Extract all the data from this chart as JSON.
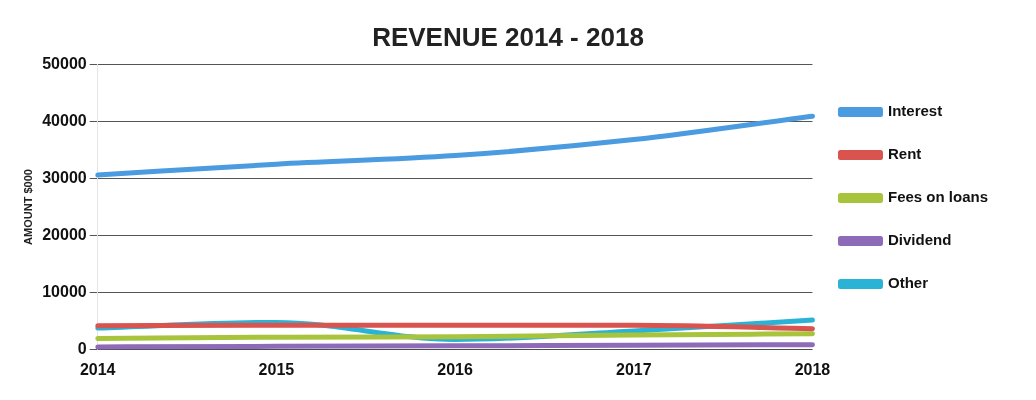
{
  "chart_data": {
    "type": "line",
    "title": "REVENUE 2014 - 2018",
    "ylabel": "AMOUNT $000",
    "categories": [
      "2014",
      "2015",
      "2016",
      "2017",
      "2018"
    ],
    "series": [
      {
        "name": "Interest",
        "color": "#4a9be0",
        "values": [
          30600,
          32500,
          34000,
          36800,
          40900
        ]
      },
      {
        "name": "Rent",
        "color": "#d9534f",
        "values": [
          4200,
          4300,
          4300,
          4300,
          3700
        ]
      },
      {
        "name": "Fees on loans",
        "color": "#a8c43c",
        "values": [
          2000,
          2200,
          2300,
          2600,
          2800
        ]
      },
      {
        "name": "Dividend",
        "color": "#8e6bb8",
        "values": [
          500,
          600,
          700,
          800,
          900
        ]
      },
      {
        "name": "Other",
        "color": "#2bb3d6",
        "values": [
          3800,
          4800,
          1800,
          3300,
          5200
        ]
      }
    ],
    "ylim": [
      0,
      50000
    ],
    "yticks": [
      0,
      10000,
      20000,
      30000,
      40000,
      50000
    ],
    "grid": "y",
    "legend": "right",
    "marker": "none",
    "line_style": "solid"
  }
}
